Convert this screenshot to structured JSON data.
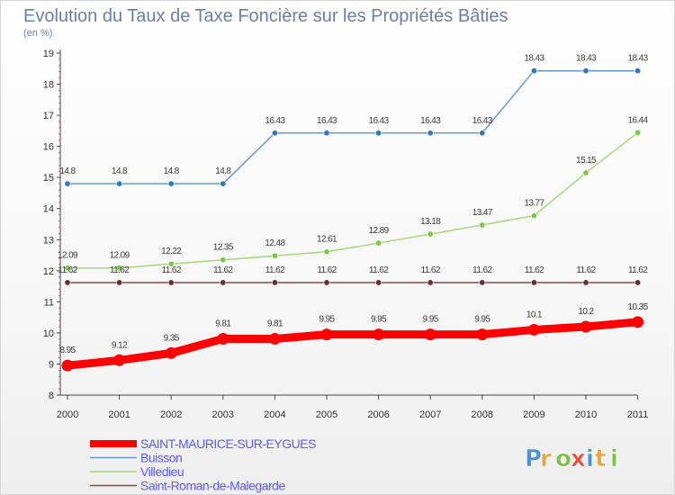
{
  "chart_data": {
    "type": "line",
    "title": "Evolution du Taux de Taxe Foncière sur les Propriétés Bâties",
    "subtitle": "(en %)",
    "x": [
      "2000",
      "2001",
      "2002",
      "2003",
      "2004",
      "2005",
      "2006",
      "2007",
      "2008",
      "2009",
      "2010",
      "2011"
    ],
    "ylim": [
      8,
      19
    ],
    "yticks": [
      8,
      9,
      10,
      11,
      12,
      13,
      14,
      15,
      16,
      17,
      18,
      19
    ],
    "grid": false,
    "legend_position": "bottom-left",
    "series": [
      {
        "name": "SAINT-MAURICE-SUR-EYGUES",
        "values": [
          8.95,
          9.12,
          9.35,
          9.81,
          9.81,
          9.95,
          9.95,
          9.95,
          9.95,
          10.1,
          10.2,
          10.35
        ],
        "labels": [
          "8.95",
          "9.12",
          "9.35",
          "9.81",
          "9.81",
          "9.95",
          "9.95",
          "9.95",
          "9.95",
          "10.1",
          "10.2",
          "10.35"
        ],
        "color": "#ff0000",
        "marker_color": "#ff0000"
      },
      {
        "name": "Buisson",
        "values": [
          14.8,
          14.8,
          14.8,
          14.8,
          16.43,
          16.43,
          16.43,
          16.43,
          16.43,
          18.43,
          18.43,
          18.43
        ],
        "labels": [
          "14.8",
          "14.8",
          "14.8",
          "14.8",
          "16.43",
          "16.43",
          "16.43",
          "16.43",
          "16.43",
          "18.43",
          "18.43",
          "18.43"
        ],
        "color": "#6699cc",
        "marker_color": "#3377bb"
      },
      {
        "name": "Villedieu",
        "values": [
          12.09,
          12.09,
          12.22,
          12.35,
          12.48,
          12.61,
          12.89,
          13.18,
          13.47,
          13.77,
          15.15,
          16.44
        ],
        "labels": [
          "12.09",
          "12.09",
          "12.22",
          "12.35",
          "12.48",
          "12.61",
          "12.89",
          "13.18",
          "13.47",
          "13.77",
          "15.15",
          "16.44"
        ],
        "color": "#a3d977",
        "marker_color": "#77cc44"
      },
      {
        "name": "Saint-Roman-de-Malegarde",
        "values": [
          11.62,
          11.62,
          11.62,
          11.62,
          11.62,
          11.62,
          11.62,
          11.62,
          11.62,
          11.62,
          11.62,
          11.62
        ],
        "labels": [
          "11.62",
          "11.62",
          "11.62",
          "11.62",
          "11.62",
          "11.62",
          "11.62",
          "11.62",
          "11.62",
          "11.62",
          "11.62",
          "11.62"
        ],
        "color": "#8a4a4a",
        "marker_color": "#6e2c2c"
      }
    ]
  },
  "logo": {
    "text": "Proxiti"
  }
}
